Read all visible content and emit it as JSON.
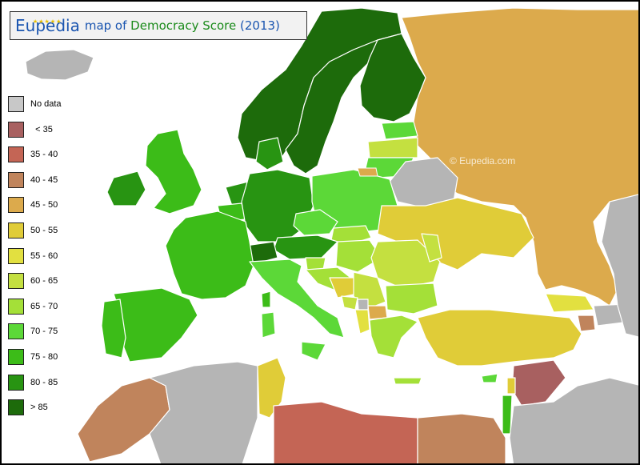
{
  "title": {
    "brand": "Eupedia",
    "prefix": "map of",
    "subject": "Democracy Score",
    "year": "(2013)"
  },
  "watermarks": [
    "© Eupedia.com",
    "© Eupedia.com"
  ],
  "colors": {
    "sea": "#ffffff",
    "nodata": "#b5b5b5",
    "border": "#ffffff"
  },
  "legend": [
    {
      "label": "No data",
      "color": "#c8c8c8"
    },
    {
      "label": "  < 35",
      "color": "#a86060"
    },
    {
      "label": "35 - 40",
      "color": "#c46555"
    },
    {
      "label": "40 - 45",
      "color": "#c0845c"
    },
    {
      "label": "45 - 50",
      "color": "#dcaa4c"
    },
    {
      "label": "50 - 55",
      "color": "#e0cc38"
    },
    {
      "label": "55 - 60",
      "color": "#e2e040"
    },
    {
      "label": "60 - 65",
      "color": "#c4e040"
    },
    {
      "label": "65 - 70",
      "color": "#a4e038"
    },
    {
      "label": "70 - 75",
      "color": "#5cd838"
    },
    {
      "label": "75 - 80",
      "color": "#3cbc18"
    },
    {
      "label": "80 - 85",
      "color": "#289412"
    },
    {
      "label": "> 85",
      "color": "#1d6b0b"
    }
  ]
}
